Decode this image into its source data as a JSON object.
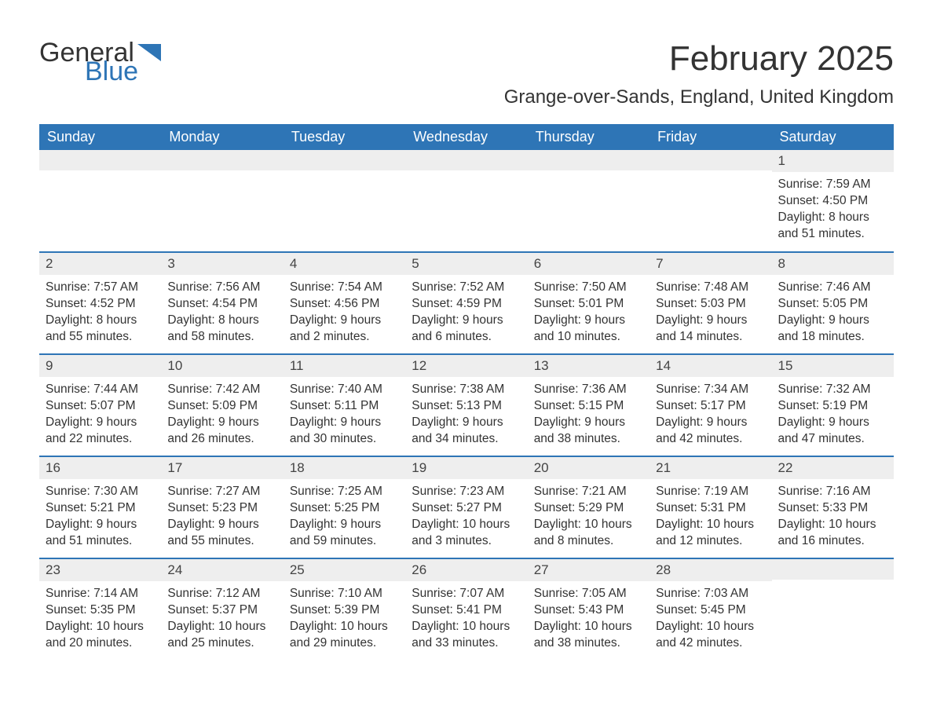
{
  "logo": {
    "text_general": "General",
    "text_blue": "Blue",
    "flag_color": "#2e75b6"
  },
  "header": {
    "month_title": "February 2025",
    "location": "Grange-over-Sands, England, United Kingdom"
  },
  "styling": {
    "header_bg": "#2e75b6",
    "header_text_color": "#ffffff",
    "daynum_bg": "#eeeeee",
    "row_border_color": "#2e75b6",
    "body_text_color": "#333333",
    "page_bg": "#ffffff",
    "font_family": "Arial, Helvetica, sans-serif",
    "month_title_fontsize": 44,
    "location_fontsize": 24,
    "th_fontsize": 18,
    "daynum_fontsize": 17,
    "cell_fontsize": 15.5
  },
  "day_names": [
    "Sunday",
    "Monday",
    "Tuesday",
    "Wednesday",
    "Thursday",
    "Friday",
    "Saturday"
  ],
  "weeks": [
    [
      null,
      null,
      null,
      null,
      null,
      null,
      {
        "day": "1",
        "sunrise": "Sunrise: 7:59 AM",
        "sunset": "Sunset: 4:50 PM",
        "daylight1": "Daylight: 8 hours",
        "daylight2": "and 51 minutes."
      }
    ],
    [
      {
        "day": "2",
        "sunrise": "Sunrise: 7:57 AM",
        "sunset": "Sunset: 4:52 PM",
        "daylight1": "Daylight: 8 hours",
        "daylight2": "and 55 minutes."
      },
      {
        "day": "3",
        "sunrise": "Sunrise: 7:56 AM",
        "sunset": "Sunset: 4:54 PM",
        "daylight1": "Daylight: 8 hours",
        "daylight2": "and 58 minutes."
      },
      {
        "day": "4",
        "sunrise": "Sunrise: 7:54 AM",
        "sunset": "Sunset: 4:56 PM",
        "daylight1": "Daylight: 9 hours",
        "daylight2": "and 2 minutes."
      },
      {
        "day": "5",
        "sunrise": "Sunrise: 7:52 AM",
        "sunset": "Sunset: 4:59 PM",
        "daylight1": "Daylight: 9 hours",
        "daylight2": "and 6 minutes."
      },
      {
        "day": "6",
        "sunrise": "Sunrise: 7:50 AM",
        "sunset": "Sunset: 5:01 PM",
        "daylight1": "Daylight: 9 hours",
        "daylight2": "and 10 minutes."
      },
      {
        "day": "7",
        "sunrise": "Sunrise: 7:48 AM",
        "sunset": "Sunset: 5:03 PM",
        "daylight1": "Daylight: 9 hours",
        "daylight2": "and 14 minutes."
      },
      {
        "day": "8",
        "sunrise": "Sunrise: 7:46 AM",
        "sunset": "Sunset: 5:05 PM",
        "daylight1": "Daylight: 9 hours",
        "daylight2": "and 18 minutes."
      }
    ],
    [
      {
        "day": "9",
        "sunrise": "Sunrise: 7:44 AM",
        "sunset": "Sunset: 5:07 PM",
        "daylight1": "Daylight: 9 hours",
        "daylight2": "and 22 minutes."
      },
      {
        "day": "10",
        "sunrise": "Sunrise: 7:42 AM",
        "sunset": "Sunset: 5:09 PM",
        "daylight1": "Daylight: 9 hours",
        "daylight2": "and 26 minutes."
      },
      {
        "day": "11",
        "sunrise": "Sunrise: 7:40 AM",
        "sunset": "Sunset: 5:11 PM",
        "daylight1": "Daylight: 9 hours",
        "daylight2": "and 30 minutes."
      },
      {
        "day": "12",
        "sunrise": "Sunrise: 7:38 AM",
        "sunset": "Sunset: 5:13 PM",
        "daylight1": "Daylight: 9 hours",
        "daylight2": "and 34 minutes."
      },
      {
        "day": "13",
        "sunrise": "Sunrise: 7:36 AM",
        "sunset": "Sunset: 5:15 PM",
        "daylight1": "Daylight: 9 hours",
        "daylight2": "and 38 minutes."
      },
      {
        "day": "14",
        "sunrise": "Sunrise: 7:34 AM",
        "sunset": "Sunset: 5:17 PM",
        "daylight1": "Daylight: 9 hours",
        "daylight2": "and 42 minutes."
      },
      {
        "day": "15",
        "sunrise": "Sunrise: 7:32 AM",
        "sunset": "Sunset: 5:19 PM",
        "daylight1": "Daylight: 9 hours",
        "daylight2": "and 47 minutes."
      }
    ],
    [
      {
        "day": "16",
        "sunrise": "Sunrise: 7:30 AM",
        "sunset": "Sunset: 5:21 PM",
        "daylight1": "Daylight: 9 hours",
        "daylight2": "and 51 minutes."
      },
      {
        "day": "17",
        "sunrise": "Sunrise: 7:27 AM",
        "sunset": "Sunset: 5:23 PM",
        "daylight1": "Daylight: 9 hours",
        "daylight2": "and 55 minutes."
      },
      {
        "day": "18",
        "sunrise": "Sunrise: 7:25 AM",
        "sunset": "Sunset: 5:25 PM",
        "daylight1": "Daylight: 9 hours",
        "daylight2": "and 59 minutes."
      },
      {
        "day": "19",
        "sunrise": "Sunrise: 7:23 AM",
        "sunset": "Sunset: 5:27 PM",
        "daylight1": "Daylight: 10 hours",
        "daylight2": "and 3 minutes."
      },
      {
        "day": "20",
        "sunrise": "Sunrise: 7:21 AM",
        "sunset": "Sunset: 5:29 PM",
        "daylight1": "Daylight: 10 hours",
        "daylight2": "and 8 minutes."
      },
      {
        "day": "21",
        "sunrise": "Sunrise: 7:19 AM",
        "sunset": "Sunset: 5:31 PM",
        "daylight1": "Daylight: 10 hours",
        "daylight2": "and 12 minutes."
      },
      {
        "day": "22",
        "sunrise": "Sunrise: 7:16 AM",
        "sunset": "Sunset: 5:33 PM",
        "daylight1": "Daylight: 10 hours",
        "daylight2": "and 16 minutes."
      }
    ],
    [
      {
        "day": "23",
        "sunrise": "Sunrise: 7:14 AM",
        "sunset": "Sunset: 5:35 PM",
        "daylight1": "Daylight: 10 hours",
        "daylight2": "and 20 minutes."
      },
      {
        "day": "24",
        "sunrise": "Sunrise: 7:12 AM",
        "sunset": "Sunset: 5:37 PM",
        "daylight1": "Daylight: 10 hours",
        "daylight2": "and 25 minutes."
      },
      {
        "day": "25",
        "sunrise": "Sunrise: 7:10 AM",
        "sunset": "Sunset: 5:39 PM",
        "daylight1": "Daylight: 10 hours",
        "daylight2": "and 29 minutes."
      },
      {
        "day": "26",
        "sunrise": "Sunrise: 7:07 AM",
        "sunset": "Sunset: 5:41 PM",
        "daylight1": "Daylight: 10 hours",
        "daylight2": "and 33 minutes."
      },
      {
        "day": "27",
        "sunrise": "Sunrise: 7:05 AM",
        "sunset": "Sunset: 5:43 PM",
        "daylight1": "Daylight: 10 hours",
        "daylight2": "and 38 minutes."
      },
      {
        "day": "28",
        "sunrise": "Sunrise: 7:03 AM",
        "sunset": "Sunset: 5:45 PM",
        "daylight1": "Daylight: 10 hours",
        "daylight2": "and 42 minutes."
      },
      null
    ]
  ]
}
